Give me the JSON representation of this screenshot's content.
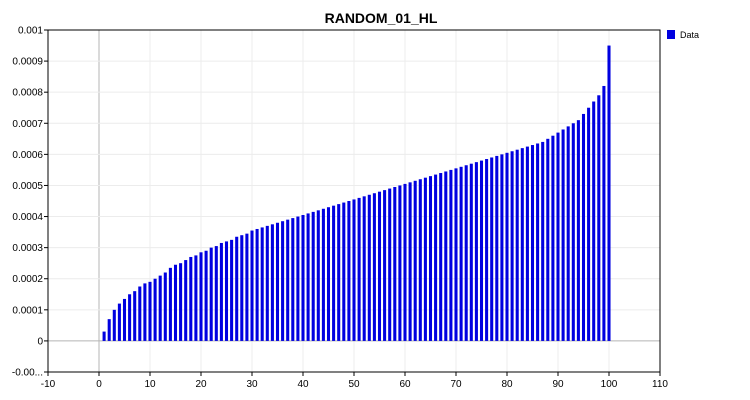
{
  "chart_data": {
    "type": "bar",
    "title": "RANDOM_01_HL",
    "xlabel": "",
    "ylabel": "",
    "xlim": [
      -10,
      110
    ],
    "ylim": [
      -0.0001,
      0.001
    ],
    "x_ticks": [
      "-10",
      "0",
      "10",
      "20",
      "30",
      "40",
      "50",
      "60",
      "70",
      "80",
      "90",
      "100",
      "110"
    ],
    "y_ticks": [
      "-0.00...",
      "0",
      "0.0001",
      "0.0002",
      "0.0003",
      "0.0004",
      "0.0005",
      "0.0006",
      "0.0007",
      "0.0008",
      "0.0009",
      "0.001"
    ],
    "grid": true,
    "legend": {
      "position": "top-right",
      "entries": [
        "Data"
      ]
    },
    "colors": {
      "bar": "#0000e0",
      "axis": "#000000",
      "grid": "#ececec",
      "zero_line": "#b4b4b4"
    },
    "series": [
      {
        "name": "Data",
        "x": [
          1,
          2,
          3,
          4,
          5,
          6,
          7,
          8,
          9,
          10,
          11,
          12,
          13,
          14,
          15,
          16,
          17,
          18,
          19,
          20,
          21,
          22,
          23,
          24,
          25,
          26,
          27,
          28,
          29,
          30,
          31,
          32,
          33,
          34,
          35,
          36,
          37,
          38,
          39,
          40,
          41,
          42,
          43,
          44,
          45,
          46,
          47,
          48,
          49,
          50,
          51,
          52,
          53,
          54,
          55,
          56,
          57,
          58,
          59,
          60,
          61,
          62,
          63,
          64,
          65,
          66,
          67,
          68,
          69,
          70,
          71,
          72,
          73,
          74,
          75,
          76,
          77,
          78,
          79,
          80,
          81,
          82,
          83,
          84,
          85,
          86,
          87,
          88,
          89,
          90,
          91,
          92,
          93,
          94,
          95,
          96,
          97,
          98,
          99,
          100
        ],
        "values": [
          3e-05,
          7e-05,
          0.0001,
          0.00012,
          0.000135,
          0.00015,
          0.00016,
          0.000175,
          0.000185,
          0.00019,
          0.0002,
          0.00021,
          0.00022,
          0.000235,
          0.000245,
          0.00025,
          0.00026,
          0.00027,
          0.000275,
          0.000285,
          0.00029,
          0.0003,
          0.000305,
          0.000315,
          0.00032,
          0.000325,
          0.000335,
          0.00034,
          0.000345,
          0.000355,
          0.00036,
          0.000365,
          0.00037,
          0.000375,
          0.00038,
          0.000385,
          0.00039,
          0.000395,
          0.0004,
          0.000405,
          0.00041,
          0.000415,
          0.00042,
          0.000425,
          0.00043,
          0.000435,
          0.00044,
          0.000445,
          0.00045,
          0.000455,
          0.00046,
          0.000465,
          0.00047,
          0.000475,
          0.00048,
          0.000485,
          0.00049,
          0.000495,
          0.0005,
          0.000505,
          0.00051,
          0.000515,
          0.00052,
          0.000525,
          0.00053,
          0.000535,
          0.00054,
          0.000545,
          0.00055,
          0.000555,
          0.00056,
          0.000565,
          0.00057,
          0.000575,
          0.00058,
          0.000585,
          0.00059,
          0.000595,
          0.0006,
          0.000605,
          0.00061,
          0.000615,
          0.00062,
          0.000625,
          0.00063,
          0.000635,
          0.00064,
          0.00065,
          0.00066,
          0.00067,
          0.00068,
          0.00069,
          0.0007,
          0.00071,
          0.00073,
          0.00075,
          0.00077,
          0.00079,
          0.00082,
          0.00095
        ]
      }
    ]
  }
}
